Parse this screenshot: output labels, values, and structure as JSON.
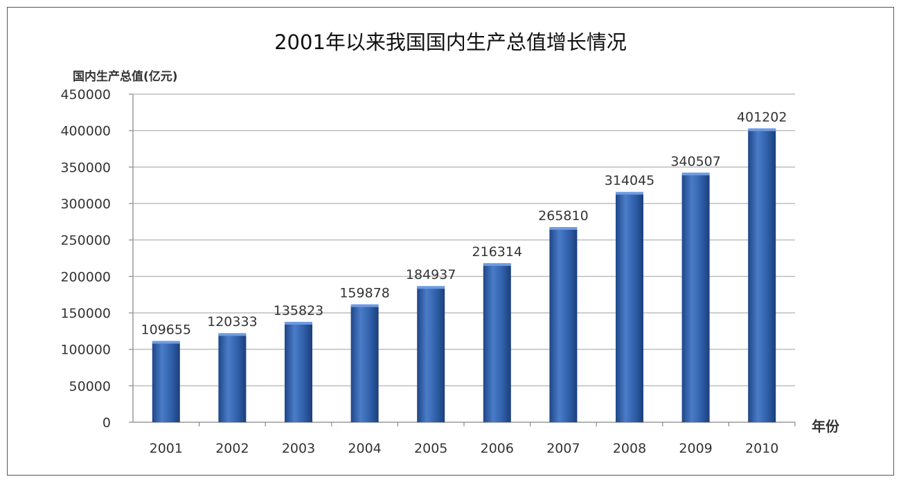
{
  "chart_data": {
    "type": "bar",
    "title": "2001年以来我国国内生产总值增长情况",
    "ylabel": "国内生产总值(亿元)",
    "xlabel": "年份",
    "categories": [
      "2001",
      "2002",
      "2003",
      "2004",
      "2005",
      "2006",
      "2007",
      "2008",
      "2009",
      "2010"
    ],
    "values": [
      109655,
      120333,
      135823,
      159878,
      184937,
      216314,
      265810,
      314045,
      340507,
      401202
    ],
    "ylim": [
      0,
      450000
    ],
    "yticks": [
      0,
      50000,
      100000,
      150000,
      200000,
      250000,
      300000,
      350000,
      400000,
      450000
    ],
    "ytick_labels": [
      "0",
      "50000",
      "100000",
      "150000",
      "200000",
      "250000",
      "300000",
      "350000",
      "400000",
      "450000"
    ],
    "grid": true,
    "data_labels": true,
    "bar_color": "#2f5fa8"
  }
}
